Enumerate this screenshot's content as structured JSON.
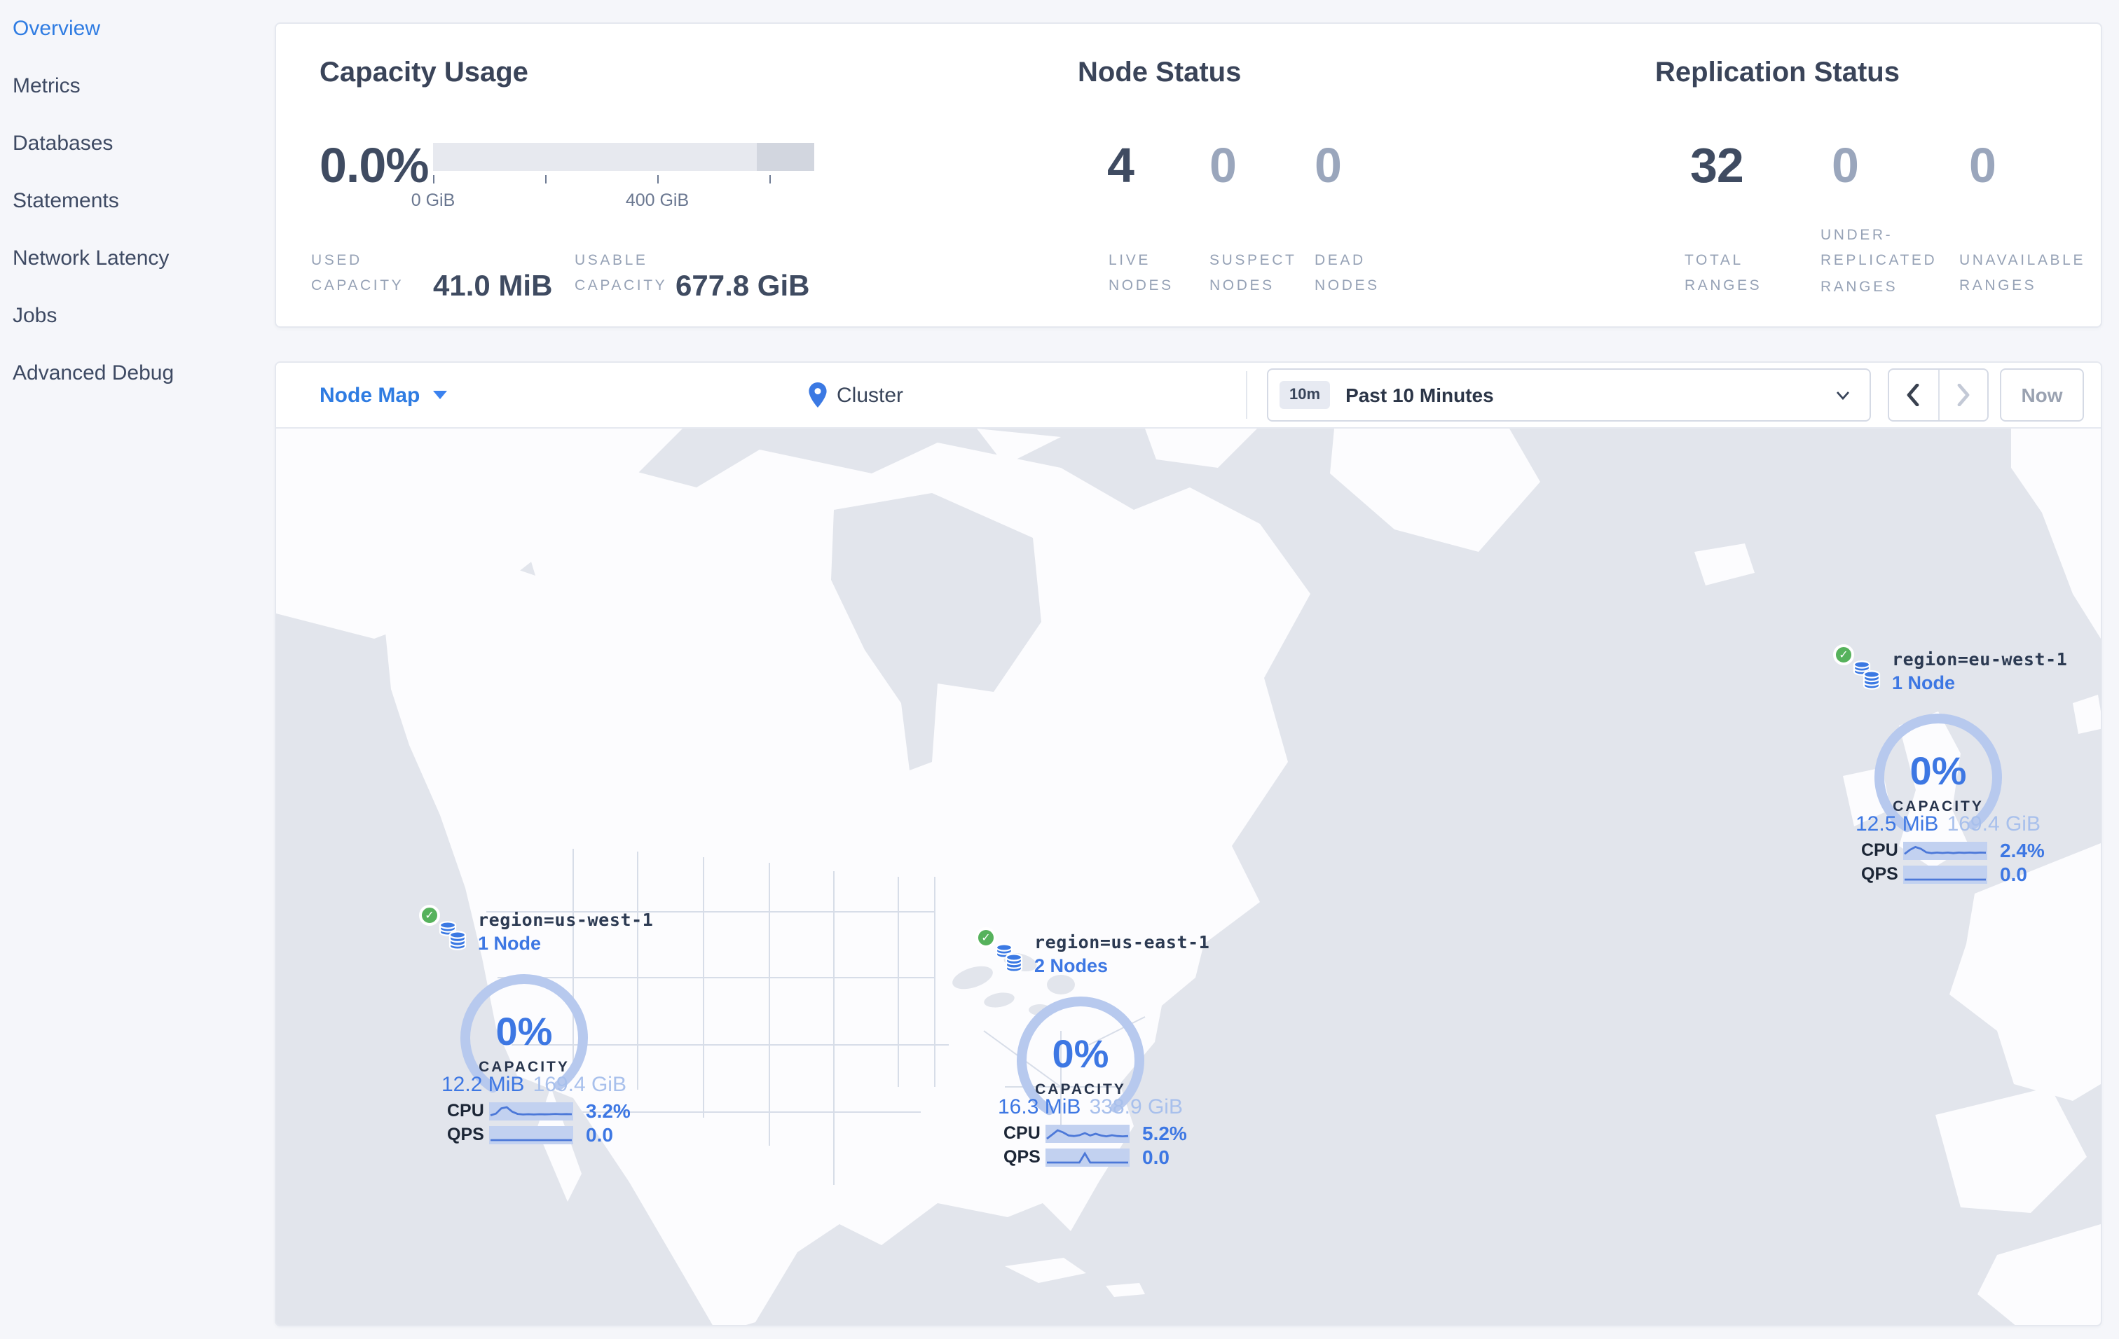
{
  "sidebar": {
    "items": [
      {
        "label": "Overview",
        "active": true
      },
      {
        "label": "Metrics",
        "active": false
      },
      {
        "label": "Databases",
        "active": false
      },
      {
        "label": "Statements",
        "active": false
      },
      {
        "label": "Network Latency",
        "active": false
      },
      {
        "label": "Jobs",
        "active": false
      },
      {
        "label": "Advanced Debug",
        "active": false
      }
    ]
  },
  "overview": {
    "capacity": {
      "title": "Capacity Usage",
      "percent": "0.0%",
      "tick_labels": [
        "0 GiB",
        "400 GiB"
      ],
      "used_label": "USED CAPACITY",
      "used_value": "41.0 MiB",
      "usable_label": "USABLE CAPACITY",
      "usable_value": "677.8 GiB"
    },
    "nodes": {
      "title": "Node Status",
      "stats": [
        {
          "value": "4",
          "label": "LIVE NODES"
        },
        {
          "value": "0",
          "label": "SUSPECT NODES"
        },
        {
          "value": "0",
          "label": "DEAD NODES"
        }
      ]
    },
    "replication": {
      "title": "Replication Status",
      "stats": [
        {
          "value": "32",
          "label": "TOTAL RANGES"
        },
        {
          "value": "0",
          "label": "UNDER-REPLICATED RANGES"
        },
        {
          "value": "0",
          "label": "UNAVAILABLE RANGES"
        }
      ]
    }
  },
  "toolbar": {
    "view_label": "Node Map",
    "breadcrumb": "Cluster",
    "time_badge": "10m",
    "time_label": "Past 10 Minutes",
    "now_label": "Now"
  },
  "map": {
    "regions": [
      {
        "name": "region=us-west-1",
        "nodes": "1 Node",
        "status": "healthy",
        "percent": "0%",
        "capacity_label": "CAPACITY",
        "used": "12.2 MiB",
        "usable": "169.4 GiB",
        "cpu_label": "CPU",
        "cpu_value": "3.2%",
        "qps_label": "QPS",
        "qps_value": "0.0",
        "cpu_spark": [
          0.78,
          0.66,
          0.28,
          0.2,
          0.52,
          0.68,
          0.72,
          0.7,
          0.72,
          0.7,
          0.71,
          0.7,
          0.68,
          0.7,
          0.69,
          0.7
        ],
        "qps_spark": [
          0.85,
          0.85,
          0.85,
          0.85,
          0.85,
          0.85,
          0.85,
          0.85,
          0.85,
          0.85,
          0.85,
          0.85,
          0.85,
          0.85,
          0.85,
          0.85
        ]
      },
      {
        "name": "region=us-east-1",
        "nodes": "2 Nodes",
        "status": "healthy",
        "percent": "0%",
        "capacity_label": "CAPACITY",
        "used": "16.3 MiB",
        "usable": "338.9 GiB",
        "cpu_label": "CPU",
        "cpu_value": "5.2%",
        "qps_label": "QPS",
        "qps_value": "0.0",
        "cpu_spark": [
          0.85,
          0.55,
          0.25,
          0.4,
          0.62,
          0.66,
          0.6,
          0.45,
          0.62,
          0.5,
          0.62,
          0.68,
          0.6,
          0.66,
          0.68,
          0.66
        ],
        "qps_spark": [
          0.85,
          0.85,
          0.85,
          0.85,
          0.85,
          0.85,
          0.85,
          0.2,
          0.85,
          0.85,
          0.85,
          0.85,
          0.85,
          0.85,
          0.85,
          0.85
        ]
      },
      {
        "name": "region=eu-west-1",
        "nodes": "1 Node",
        "status": "healthy",
        "percent": "0%",
        "capacity_label": "CAPACITY",
        "used": "12.5 MiB",
        "usable": "169.4 GiB",
        "cpu_label": "CPU",
        "cpu_value": "2.4%",
        "qps_label": "QPS",
        "qps_value": "0.0",
        "cpu_spark": [
          0.72,
          0.42,
          0.22,
          0.35,
          0.6,
          0.66,
          0.62,
          0.65,
          0.62,
          0.66,
          0.62,
          0.64,
          0.62,
          0.64,
          0.62,
          0.63
        ],
        "qps_spark": [
          0.85,
          0.85,
          0.85,
          0.85,
          0.85,
          0.85,
          0.85,
          0.85,
          0.85,
          0.85,
          0.85,
          0.85,
          0.85,
          0.85,
          0.85,
          0.85
        ]
      }
    ]
  },
  "colors": {
    "accent_blue": "#2f7ce2",
    "marker_blue": "#3d77e3",
    "healthy_green": "#56b25c",
    "dark_text": "#3f4b61",
    "muted_text": "#96a2b6",
    "water": "#e2e5ec",
    "land": "#fcfcfe"
  }
}
